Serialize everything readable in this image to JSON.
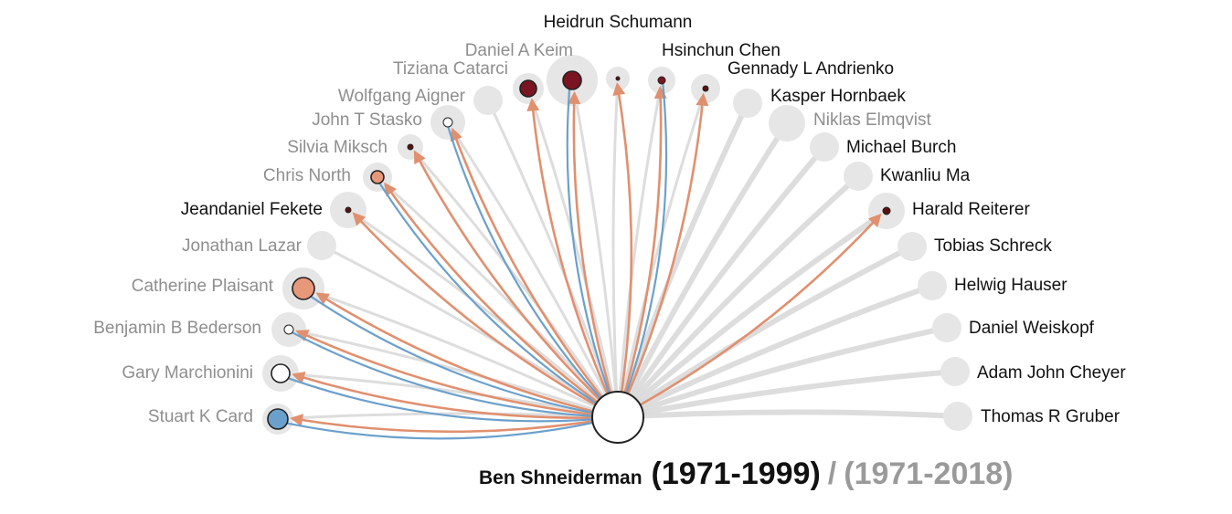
{
  "colors": {
    "cited": "#e0906f",
    "citing": "#6ba0cc",
    "link_gray": "#d9d9d9",
    "halo": "#e6e6e6",
    "center_fill": "#ffffff",
    "center_stroke": "#222222"
  },
  "center": {
    "name": "Ben Shneiderman"
  },
  "caption": {
    "name": "Ben Shneiderman",
    "range_focus": "(1971-1999)",
    "separator": "/",
    "range_full": "(1971-2018)"
  },
  "nodes": [
    {
      "name": "Stuart K Card",
      "label_color": "gray",
      "fill": "#6ba0cc",
      "links": [
        "cited",
        "citing"
      ]
    },
    {
      "name": "Gary Marchionini",
      "label_color": "gray",
      "fill": "#ffffff",
      "links": [
        "cited",
        "citing"
      ]
    },
    {
      "name": "Benjamin B Bederson",
      "label_color": "gray",
      "fill": "#ffffff",
      "links": [
        "cited",
        "citing"
      ]
    },
    {
      "name": "Catherine Plaisant",
      "label_color": "gray",
      "fill": "#e8987a",
      "links": [
        "cited",
        "citing"
      ]
    },
    {
      "name": "Jonathan Lazar",
      "label_color": "gray",
      "fill": null,
      "links": []
    },
    {
      "name": "Jeandaniel Fekete",
      "label_color": "dark",
      "fill": "#5a1010",
      "links": [
        "cited"
      ]
    },
    {
      "name": "Chris North",
      "label_color": "gray",
      "fill": "#e8987a",
      "links": [
        "cited",
        "citing"
      ]
    },
    {
      "name": "Silvia Miksch",
      "label_color": "gray",
      "fill": "#5a1010",
      "links": [
        "cited"
      ]
    },
    {
      "name": "John T Stasko",
      "label_color": "gray",
      "fill": "#ffffff",
      "links": [
        "cited",
        "citing"
      ]
    },
    {
      "name": "Wolfgang Aigner",
      "label_color": "gray",
      "fill": null,
      "links": []
    },
    {
      "name": "Tiziana Catarci",
      "label_color": "gray",
      "fill": "#7a1420",
      "links": [
        "cited"
      ]
    },
    {
      "name": "Daniel A Keim",
      "label_color": "gray",
      "fill": "#7a1420",
      "links": [
        "cited",
        "citing"
      ]
    },
    {
      "name": "Heidrun Schumann",
      "label_color": "dark",
      "fill": "#5a1010",
      "links": [
        "cited"
      ]
    },
    {
      "name": "Hsinchun Chen",
      "label_color": "dark",
      "fill": "#7a1420",
      "links": [
        "cited",
        "citing"
      ]
    },
    {
      "name": "Gennady L Andrienko",
      "label_color": "dark",
      "fill": "#5a1010",
      "links": [
        "cited"
      ]
    },
    {
      "name": "Kasper Hornbaek",
      "label_color": "dark",
      "fill": null,
      "links": []
    },
    {
      "name": "Niklas Elmqvist",
      "label_color": "gray",
      "fill": null,
      "links": []
    },
    {
      "name": "Michael Burch",
      "label_color": "dark",
      "fill": null,
      "links": []
    },
    {
      "name": "Kwanliu Ma",
      "label_color": "dark",
      "fill": null,
      "links": []
    },
    {
      "name": "Harald Reiterer",
      "label_color": "dark",
      "fill": "#5a1010",
      "links": [
        "cited"
      ]
    },
    {
      "name": "Tobias Schreck",
      "label_color": "dark",
      "fill": null,
      "links": []
    },
    {
      "name": "Helwig Hauser",
      "label_color": "dark",
      "fill": null,
      "links": []
    },
    {
      "name": "Daniel Weiskopf",
      "label_color": "dark",
      "fill": null,
      "links": []
    },
    {
      "name": "Adam John Cheyer",
      "label_color": "dark",
      "fill": null,
      "links": []
    },
    {
      "name": "Thomas R Gruber",
      "label_color": "dark",
      "fill": null,
      "links": []
    }
  ]
}
